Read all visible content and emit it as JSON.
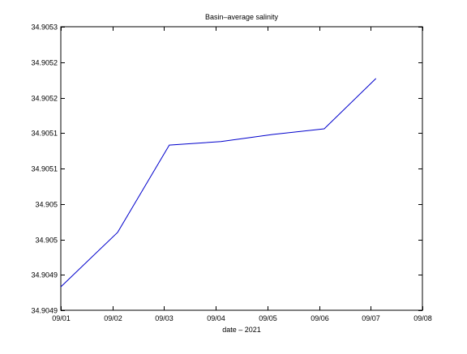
{
  "chart_data": {
    "type": "line",
    "title": "Basin–average salinity",
    "xlabel": "date –   2021",
    "ylabel": "",
    "grid": false,
    "x_categories": [
      "09/01",
      "09/02",
      "09/03",
      "09/04",
      "09/05",
      "09/06",
      "09/07",
      "09/08"
    ],
    "x_range": [
      0,
      7
    ],
    "y_ticks": [
      {
        "value": 34.90485,
        "label": "34.9049"
      },
      {
        "value": 34.9049,
        "label": "34.9049"
      },
      {
        "value": 34.90495,
        "label": "34.905"
      },
      {
        "value": 34.905,
        "label": "34.905"
      },
      {
        "value": 34.90505,
        "label": "34.9051"
      },
      {
        "value": 34.9051,
        "label": "34.9051"
      },
      {
        "value": 34.90515,
        "label": "34.9052"
      },
      {
        "value": 34.9052,
        "label": "34.9052"
      },
      {
        "value": 34.90525,
        "label": "34.9053"
      }
    ],
    "ylim": [
      34.90485,
      34.90525
    ],
    "series": [
      {
        "color": "#0000cc",
        "x": [
          0.0,
          1.1,
          2.1,
          3.1,
          4.1,
          5.1,
          6.1
        ],
        "y": [
          34.904883,
          34.90496,
          34.905083,
          34.905088,
          34.905098,
          34.905106,
          34.905177
        ]
      }
    ]
  }
}
